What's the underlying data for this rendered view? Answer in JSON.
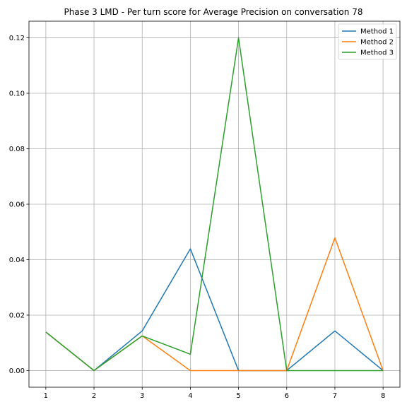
{
  "chart_data": {
    "type": "line",
    "title": "Phase 3 LMD - Per turn score for Average Precision on conversation 78",
    "xlabel": "",
    "ylabel": "",
    "x": [
      1,
      2,
      3,
      4,
      5,
      6,
      7,
      8
    ],
    "xlim": [
      0.65,
      8.35
    ],
    "ylim": [
      -0.006,
      0.126
    ],
    "xticks": [
      1,
      2,
      3,
      4,
      5,
      6,
      7,
      8
    ],
    "yticks": [
      0.0,
      0.02,
      0.04,
      0.06,
      0.08,
      0.1,
      0.12
    ],
    "ytick_labels": [
      "0.00",
      "0.02",
      "0.04",
      "0.06",
      "0.08",
      "0.10",
      "0.12"
    ],
    "grid": true,
    "legend_position": "top-right",
    "series": [
      {
        "name": "Method 1",
        "color": "#1f77b4",
        "values": [
          0.0139,
          0.0,
          0.0143,
          0.0439,
          0.0,
          0.0,
          0.0143,
          0.0
        ]
      },
      {
        "name": "Method 2",
        "color": "#ff7f0e",
        "values": [
          0.0139,
          0.0,
          0.0125,
          0.0,
          0.0,
          0.0,
          0.0479,
          0.0
        ]
      },
      {
        "name": "Method 3",
        "color": "#2ca02c",
        "values": [
          0.0139,
          0.0,
          0.0125,
          0.0059,
          0.12,
          0.0,
          0.0,
          0.0
        ]
      }
    ]
  }
}
